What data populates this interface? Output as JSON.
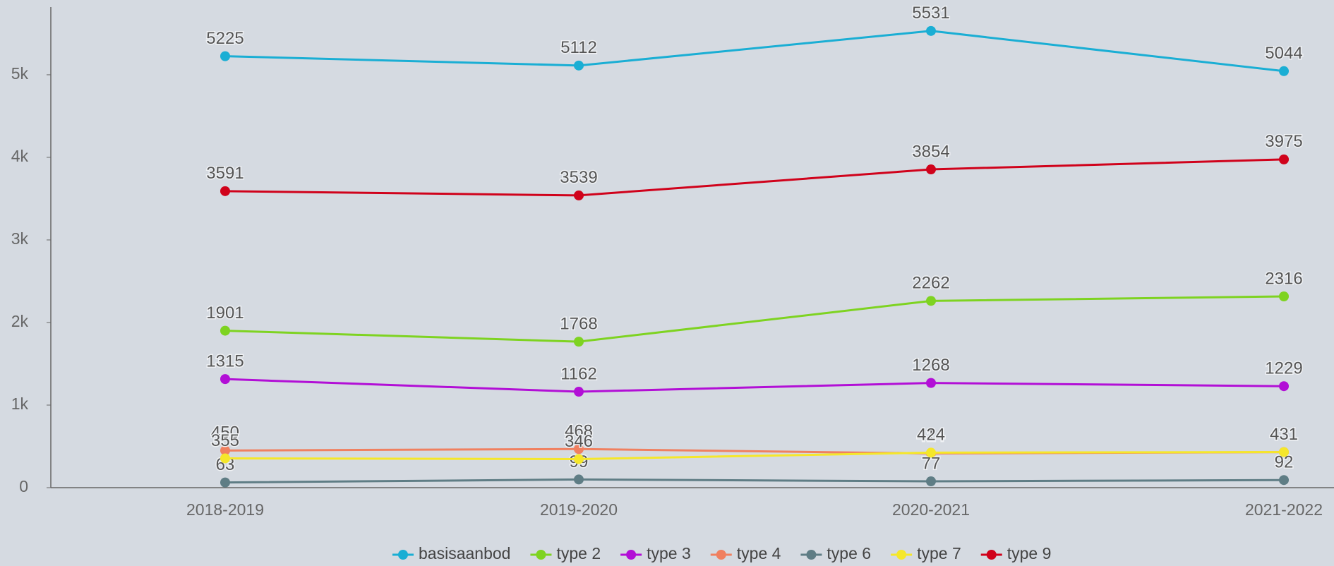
{
  "chart_data": {
    "type": "line",
    "categories": [
      "2018-2019",
      "2019-2020",
      "2020-2021",
      "2021-2022"
    ],
    "series": [
      {
        "name": "basisaanbod",
        "color": "#1aaed4",
        "values": [
          5225,
          5112,
          5531,
          5044
        ]
      },
      {
        "name": "type 2",
        "color": "#7ed321",
        "values": [
          1901,
          1768,
          2262,
          2316
        ]
      },
      {
        "name": "type 3",
        "color": "#b20fd6",
        "values": [
          1315,
          1162,
          1268,
          1229
        ]
      },
      {
        "name": "type 4",
        "color": "#f08060",
        "values": [
          450,
          468,
          414,
          431
        ]
      },
      {
        "name": "type 6",
        "color": "#5f7d85",
        "values": [
          63,
          99,
          77,
          92
        ]
      },
      {
        "name": "type 7",
        "color": "#f5e72a",
        "values": [
          355,
          346,
          424,
          431
        ]
      },
      {
        "name": "type 9",
        "color": "#d0021b",
        "values": [
          3591,
          3539,
          3854,
          3975
        ]
      }
    ],
    "ylim": [
      0,
      5820
    ],
    "yticks": [
      0,
      {
        "value": 1000,
        "label": "1k"
      },
      {
        "value": 2000,
        "label": "2k"
      },
      {
        "value": 3000,
        "label": "3k"
      },
      {
        "value": 4000,
        "label": "4k"
      },
      {
        "value": 5000,
        "label": "5k"
      }
    ],
    "legend": "bottom"
  }
}
